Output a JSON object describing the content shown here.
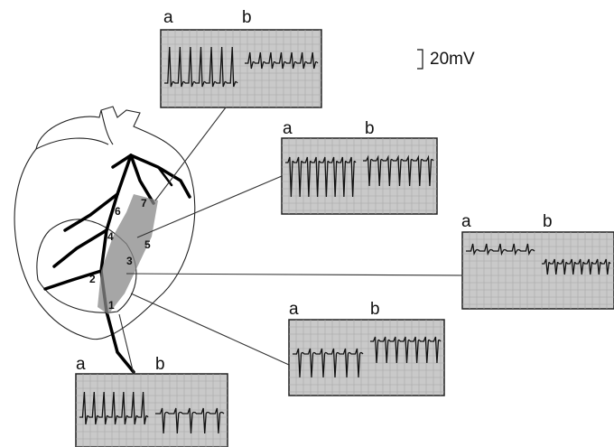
{
  "scale_label": "20mV",
  "panels": [
    {
      "label_a": "a",
      "label_b": "b"
    },
    {
      "label_a": "a",
      "label_b": "b"
    },
    {
      "label_a": "a",
      "label_b": "b"
    },
    {
      "label_a": "a",
      "label_b": "b"
    },
    {
      "label_a": "a",
      "label_b": "b"
    }
  ],
  "sites": [
    "1",
    "2",
    "3",
    "4",
    "5",
    "6",
    "7"
  ]
}
